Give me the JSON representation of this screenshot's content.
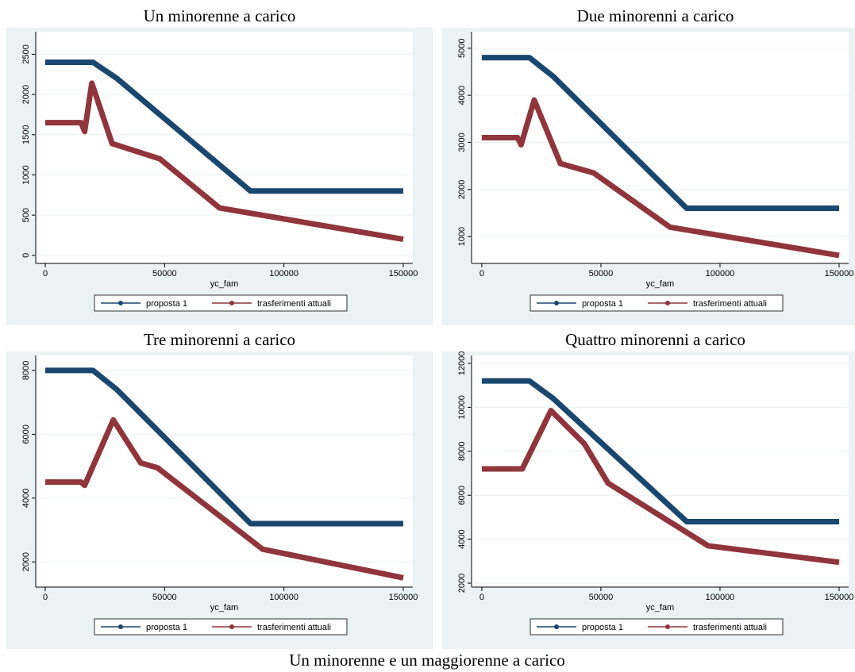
{
  "chart_data": [
    {
      "type": "line",
      "title": "Un minorenne a carico",
      "xlabel": "yc_fam",
      "xlim": [
        -4000,
        154000
      ],
      "xticks": [
        0,
        50000,
        100000,
        150000
      ],
      "ylim": [
        -100,
        2780
      ],
      "yticks": [
        0,
        500,
        1000,
        1500,
        2000,
        2500
      ],
      "grid": true,
      "legend": "bottom",
      "series": [
        {
          "name": "proposta 1",
          "color": "#1a476f",
          "x": [
            0,
            20000,
            30000,
            86000,
            150000
          ],
          "values": [
            2400,
            2400,
            2200,
            800,
            800
          ]
        },
        {
          "name": "trasferimenti attuali",
          "color": "#90353b",
          "x": [
            0,
            15000,
            16500,
            19500,
            28000,
            48000,
            73000,
            150000
          ],
          "values": [
            1650,
            1650,
            1540,
            2140,
            1390,
            1200,
            590,
            200
          ]
        }
      ]
    },
    {
      "type": "line",
      "title": "Due minorenni a carico",
      "xlabel": "yc_fam",
      "xlim": [
        -4300,
        154000
      ],
      "xticks": [
        0,
        50000,
        100000,
        150000
      ],
      "ylim": [
        430,
        5350
      ],
      "yticks": [
        1000,
        2000,
        3000,
        4000,
        5000
      ],
      "grid": true,
      "legend": "bottom",
      "series": [
        {
          "name": "proposta 1",
          "color": "#1a476f",
          "x": [
            0,
            20000,
            30000,
            86000,
            150000
          ],
          "values": [
            4800,
            4800,
            4400,
            1600,
            1600
          ]
        },
        {
          "name": "trasferimenti attuali",
          "color": "#90353b",
          "x": [
            0,
            15000,
            16500,
            22000,
            33000,
            47000,
            79000,
            150000
          ],
          "values": [
            3100,
            3100,
            2950,
            3900,
            2550,
            2350,
            1200,
            600
          ]
        }
      ]
    },
    {
      "type": "line",
      "title": "Tre minorenni a carico",
      "xlabel": "yc_fam",
      "xlim": [
        -4000,
        154000
      ],
      "xticks": [
        0,
        50000,
        100000,
        150000
      ],
      "ylim": [
        1210,
        8470
      ],
      "yticks": [
        2000,
        4000,
        6000,
        8000
      ],
      "grid": true,
      "legend": "bottom",
      "series": [
        {
          "name": "proposta 1",
          "color": "#1a476f",
          "x": [
            0,
            20000,
            30000,
            86000,
            150000
          ],
          "values": [
            8000,
            8000,
            7400,
            3200,
            3200
          ]
        },
        {
          "name": "trasferimenti attuali",
          "color": "#90353b",
          "x": [
            0,
            15000,
            16500,
            28500,
            40000,
            47000,
            91000,
            150000
          ],
          "values": [
            4500,
            4500,
            4400,
            6450,
            5100,
            4950,
            2400,
            1500
          ]
        }
      ]
    },
    {
      "type": "line",
      "title": "Quattro minorenni a carico",
      "xlabel": "yc_fam",
      "xlim": [
        -4300,
        154000
      ],
      "xticks": [
        0,
        50000,
        100000,
        150000
      ],
      "ylim": [
        1820,
        12360
      ],
      "yticks": [
        2000,
        4000,
        6000,
        8000,
        10000,
        12000
      ],
      "grid": true,
      "legend": "bottom",
      "series": [
        {
          "name": "proposta 1",
          "color": "#1a476f",
          "x": [
            0,
            20000,
            30000,
            86000,
            150000
          ],
          "values": [
            11200,
            11200,
            10400,
            4800,
            4800
          ]
        },
        {
          "name": "trasferimenti attuali",
          "color": "#90353b",
          "x": [
            0,
            16000,
            17000,
            29000,
            43000,
            53000,
            95000,
            150000
          ],
          "values": [
            7200,
            7200,
            7200,
            9850,
            8350,
            6550,
            3700,
            2950
          ]
        }
      ]
    }
  ],
  "caption": "Un minorenne e un maggiorenne a carico"
}
